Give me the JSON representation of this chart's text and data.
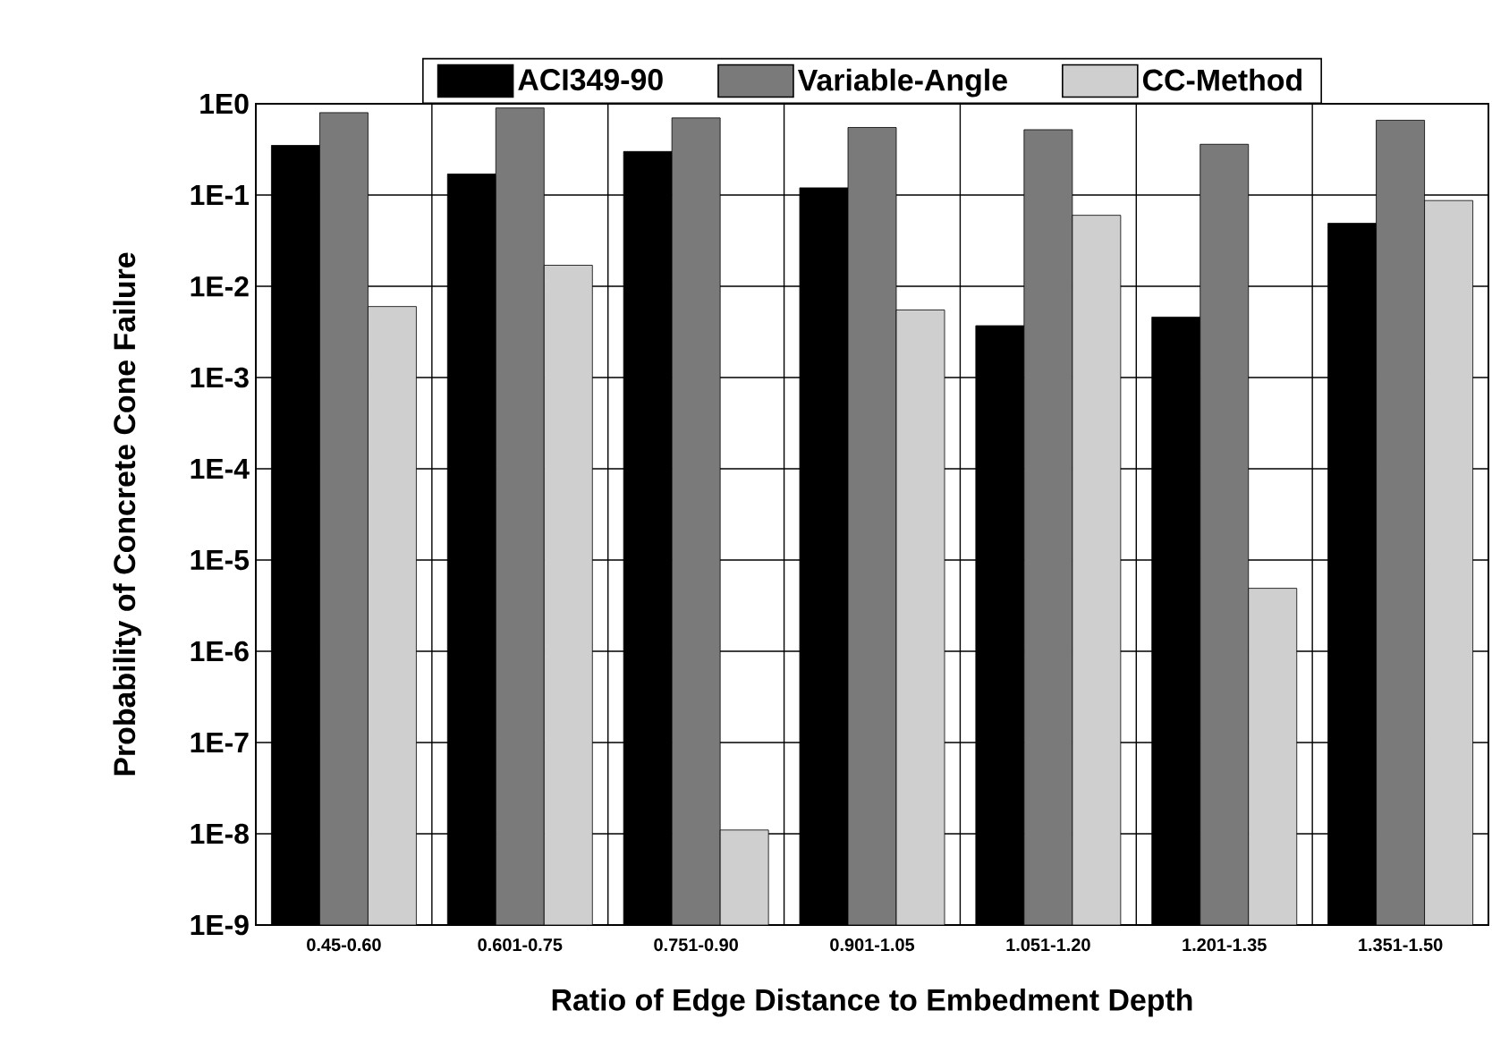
{
  "chart_data": {
    "type": "bar",
    "xlabel": "Ratio of Edge Distance to Embedment Depth",
    "ylabel": "Probability of Concrete Cone Failure",
    "categories": [
      "0.45-0.60",
      "0.601-0.75",
      "0.751-0.90",
      "0.901-1.05",
      "1.051-1.20",
      "1.201-1.35",
      "1.351-1.50"
    ],
    "series": [
      {
        "name": "ACI349-90",
        "color": "#000000",
        "values": [
          0.35,
          0.17,
          0.3,
          0.12,
          0.0037,
          0.0046,
          0.049
        ]
      },
      {
        "name": "Variable-Angle",
        "color": "#7a7a7a",
        "values": [
          0.8,
          0.9,
          0.7,
          0.55,
          0.52,
          0.36,
          0.66
        ]
      },
      {
        "name": "CC-Method",
        "color": "#cfcfcf",
        "values": [
          0.006,
          0.017,
          1.1e-08,
          0.0055,
          0.06,
          4.9e-06,
          0.087
        ]
      }
    ],
    "log": "y",
    "ylim": [
      1e-09,
      1
    ],
    "yticks": [
      {
        "value": 1e-09,
        "label": "1E-9"
      },
      {
        "value": 1e-08,
        "label": "1E-8"
      },
      {
        "value": 1e-07,
        "label": "1E-7"
      },
      {
        "value": 1e-06,
        "label": "1E-6"
      },
      {
        "value": 1e-05,
        "label": "1E-5"
      },
      {
        "value": 0.0001,
        "label": "1E-4"
      },
      {
        "value": 0.001,
        "label": "1E-3"
      },
      {
        "value": 0.01,
        "label": "1E-2"
      },
      {
        "value": 0.1,
        "label": "1E-1"
      },
      {
        "value": 1,
        "label": "1E0"
      }
    ],
    "grid": true,
    "legend": "top"
  }
}
